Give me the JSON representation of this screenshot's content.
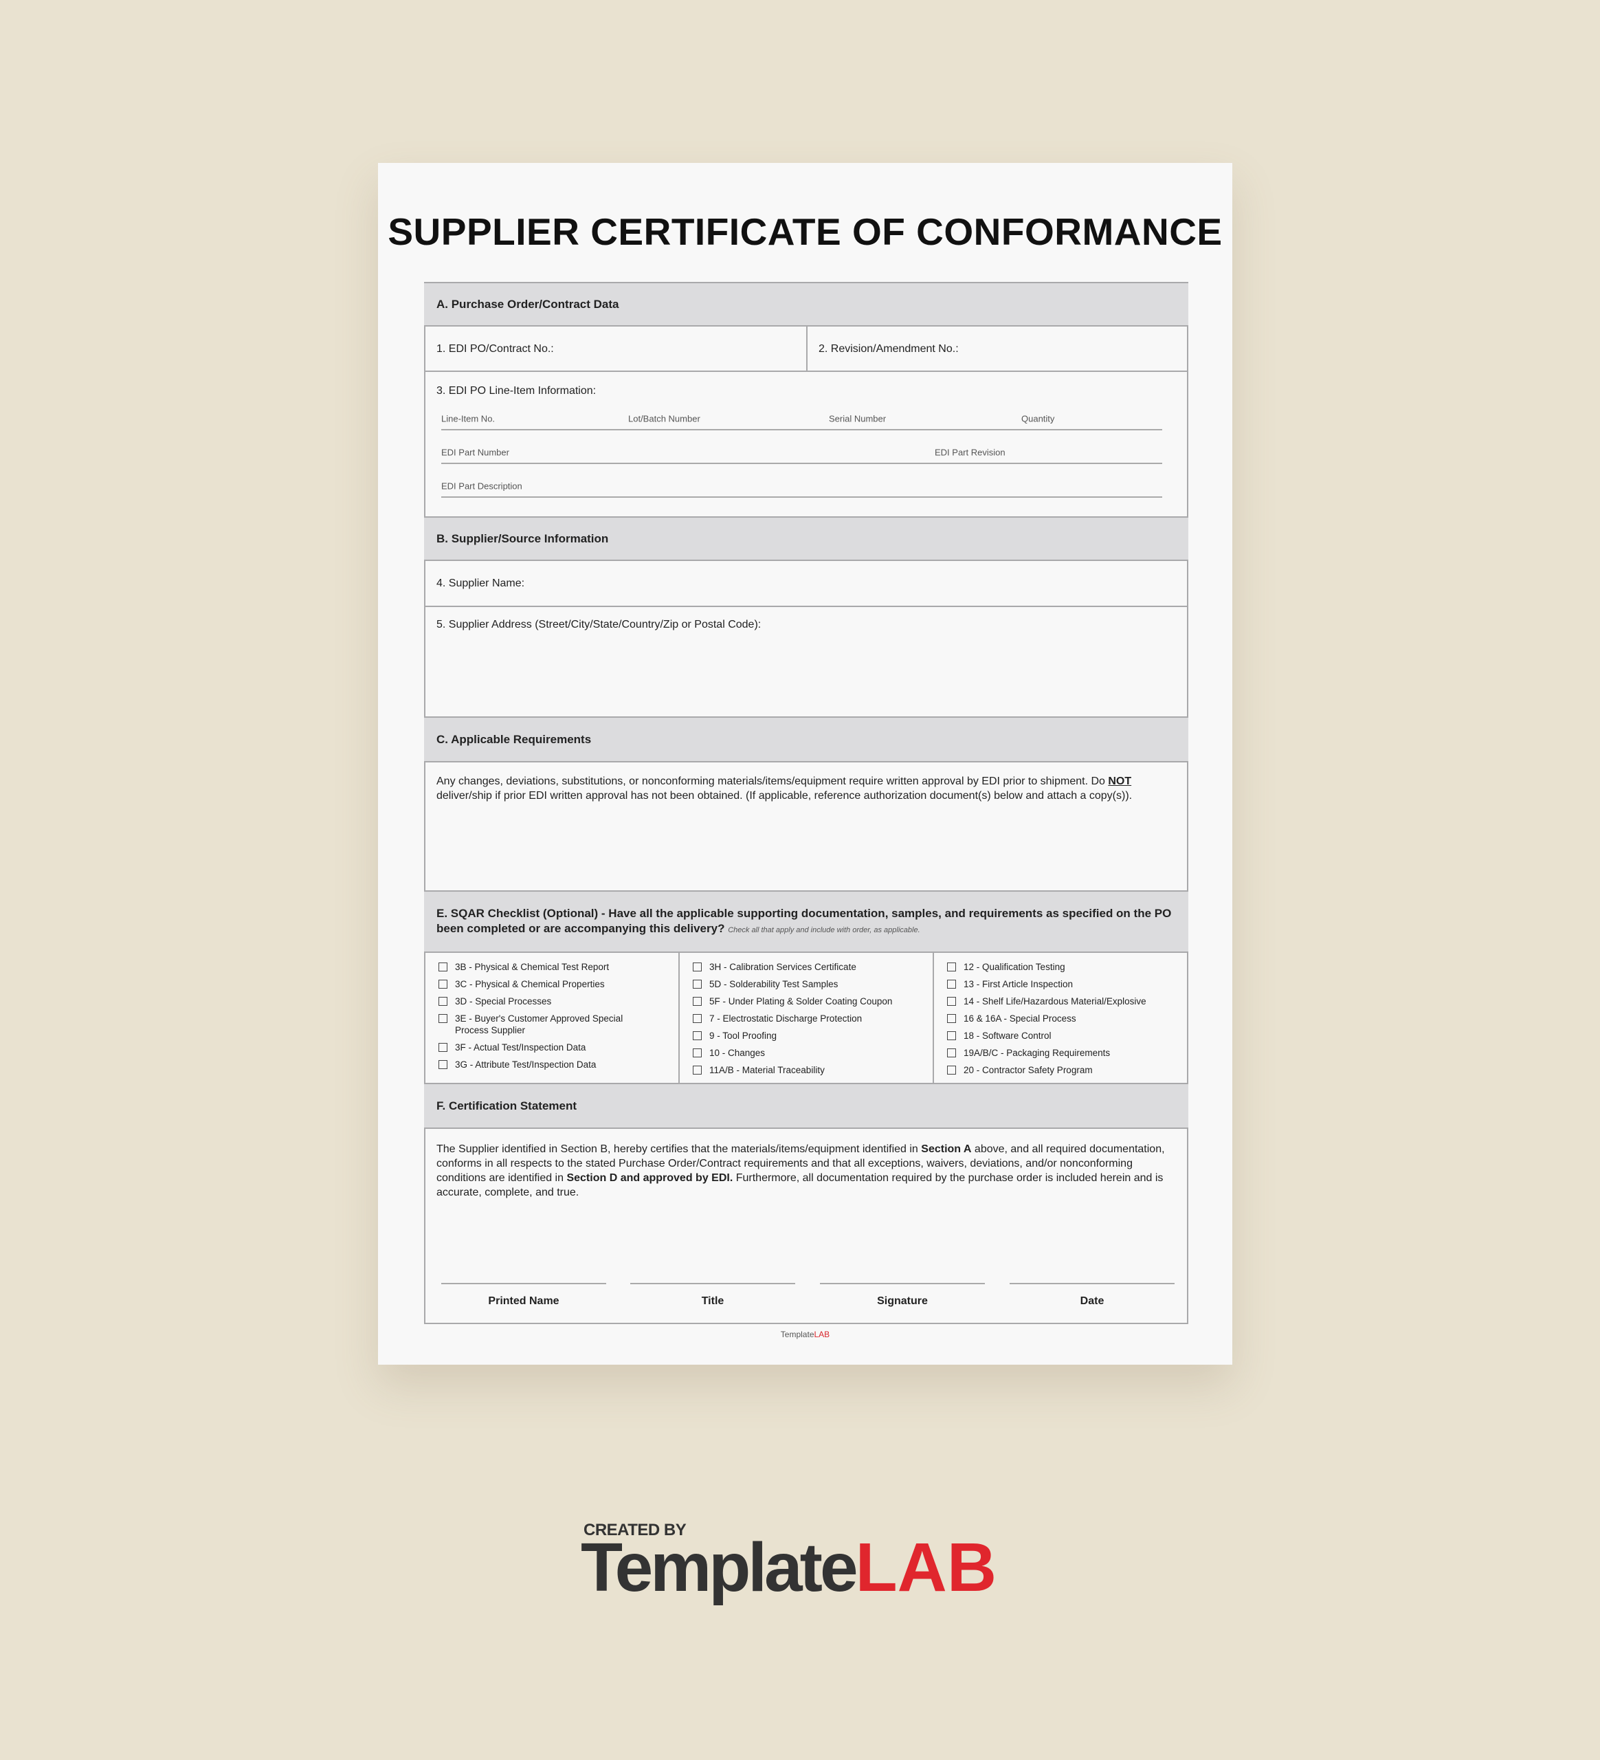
{
  "title": "SUPPLIER CERTIFICATE OF CONFORMANCE",
  "section_a": {
    "header": "A. Purchase Order/Contract Data",
    "field_1": "1. EDI PO/Contract No.:",
    "field_2": "2. Revision/Amendment No.:",
    "field_3": "3. EDI PO Line-Item Information:",
    "line_item_fields": [
      "Line-Item No.",
      "Lot/Batch Number",
      "Serial Number",
      "Quantity",
      "EDI Part Number",
      "EDI Part Revision",
      "EDI Part Description"
    ]
  },
  "section_b": {
    "header": "B. Supplier/Source Information",
    "field_4": "4. Supplier Name:",
    "field_5": "5. Supplier Address (Street/City/State/Country/Zip or Postal Code):"
  },
  "section_c": {
    "header": "C. Applicable Requirements",
    "text": [
      "Any changes, deviations, substitutions, or nonconforming materials/items/equipment require written approval by EDI prior to shipment. Do ",
      "NOT",
      " deliver/ship if prior EDI written approval has not been obtained. (If applicable, reference authorization document(s) below and attach a copy(s))."
    ]
  },
  "section_e": {
    "header": "E. SQAR Checklist (Optional) - Have all the applicable supporting documentation, samples, and requirements as specified on the PO been completed or are accompanying this delivery?",
    "note": "Check all that apply and include with order, as applicable.",
    "columns": [
      [
        "3B - Physical & Chemical Test Report",
        "3C - Physical & Chemical Properties",
        "3D - Special Processes",
        "3E - Buyer's Customer Approved Special Process Supplier",
        "3F - Actual Test/Inspection Data",
        "3G - Attribute Test/Inspection Data"
      ],
      [
        "3H - Calibration Services Certificate",
        "5D - Solderability Test Samples",
        "5F - Under Plating & Solder Coating Coupon",
        "7 - Electrostatic Discharge Protection",
        "9 - Tool Proofing",
        "10 - Changes",
        "11A/B - Material Traceability"
      ],
      [
        "12 - Qualification Testing",
        "13 - First Article Inspection",
        "14 - Shelf Life/Hazardous Material/Explosive",
        "16 & 16A - Special Process",
        "18 - Software Control",
        "19A/B/C - Packaging Requirements",
        "20 - Contractor Safety Program"
      ]
    ]
  },
  "section_f": {
    "header": "F. Certification Statement",
    "text": [
      "The Supplier identified in Section B, hereby certifies that the materials/items/equipment identified in ",
      "Section A",
      " above, and all required documentation, conforms in all respects to the stated Purchase Order/Contract requirements and that all exceptions, waivers, deviations, and/or nonconforming conditions are identified in ",
      "Section D and approved by EDI.",
      " Furthermore, all documentation required by the purchase order is included herein and is accurate, complete, and true."
    ],
    "signatures": [
      "Printed Name",
      "Title",
      "Signature",
      "Date"
    ]
  },
  "footer_brand": [
    "Template",
    "LAB"
  ],
  "logo": {
    "caption": "CREATED BY",
    "brand": [
      "Template",
      "LAB"
    ]
  }
}
